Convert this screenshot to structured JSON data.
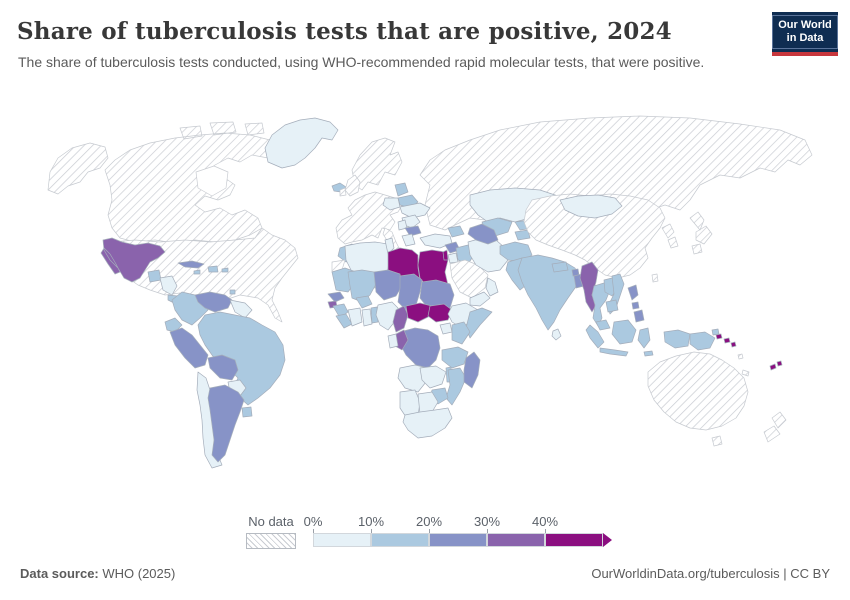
{
  "header": {
    "title": "Share of tuberculosis tests that are positive, 2024",
    "subtitle": "The share of tuberculosis tests conducted, using WHO-recommended rapid molecular tests, that were positive.",
    "logo": {
      "line1": "Our World",
      "line2": "in Data",
      "bg_color": "#0f2d52",
      "accent_color": "#c8373d"
    }
  },
  "legend": {
    "no_data_label": "No data",
    "tick_labels": [
      "0%",
      "10%",
      "20%",
      "30%",
      "40%"
    ]
  },
  "footer": {
    "datasource_label": "Data source:",
    "datasource_value": " WHO (2025)",
    "link_text": "OurWorldinData.org/tuberculosis | CC BY"
  },
  "chart_data": {
    "type": "choropleth",
    "title": "Share of tuberculosis tests that are positive, 2024",
    "unit": "%",
    "legend_position": "bottom",
    "bins": [
      {
        "key": "0-10",
        "range": [
          0,
          10
        ],
        "color": "#e6f1f7"
      },
      {
        "key": "10-20",
        "range": [
          10,
          20
        ],
        "color": "#abc9e0"
      },
      {
        "key": "20-30",
        "range": [
          20,
          30
        ],
        "color": "#8793c7"
      },
      {
        "key": "30-40",
        "range": [
          30,
          40
        ],
        "color": "#8a63ac"
      },
      {
        "key": "40+",
        "range": [
          40,
          60
        ],
        "color": "#8b0f80"
      }
    ],
    "no_data": {
      "key": "no-data",
      "label": "No data",
      "pattern": "diagonal-hatch",
      "line_color": "#c9ccd2"
    },
    "countries": {
      "canada": "no-data",
      "usa": "no-data",
      "greenland": "0-10",
      "iceland": "10-20",
      "mexico": "30-40",
      "cuba": "20-30",
      "hispaniola": "10-20",
      "jamaica": "10-20",
      "puerto-rico": "10-20",
      "guatemala": "10-20",
      "honduras-nicaragua": "0-10",
      "costa-rica-panama": "10-20",
      "trinidad": "10-20",
      "colombia": "10-20",
      "venezuela": "20-30",
      "guyanas": "0-10",
      "ecuador": "10-20",
      "peru": "20-30",
      "brazil": "10-20",
      "bolivia": "20-30",
      "paraguay": "0-10",
      "chile": "0-10",
      "argentina": "20-30",
      "uruguay": "10-20",
      "uk": "no-data",
      "ireland": "no-data",
      "western-europe": "no-data",
      "italy": "no-data",
      "scandinavia": "no-data",
      "baltics": "10-20",
      "belarus": "10-20",
      "poland": "0-10",
      "ukraine": "0-10",
      "romania": "0-10",
      "serbia": "0-10",
      "bulgaria": "20-30",
      "greece": "0-10",
      "turkey": "0-10",
      "caucasus": "10-20",
      "russia": "no-data",
      "morocco": "10-20",
      "western-sahara": "no-data",
      "algeria": "0-10",
      "tunisia": "0-10",
      "libya": "40+",
      "egypt": "40+",
      "mauritania": "10-20",
      "mali": "10-20",
      "niger": "20-30",
      "chad": "20-30",
      "sudan": "20-30",
      "senegal": "20-30",
      "guinea-bissau": "30-40",
      "guinea": "10-20",
      "sierra-leone-liberia": "10-20",
      "ivory-coast": "0-10",
      "ghana": "0-10",
      "togo-benin": "10-20",
      "burkina-faso": "10-20",
      "nigeria": "0-10",
      "cameroon": "30-40",
      "car": "40+",
      "south-sudan": "40+",
      "ethiopia": "0-10",
      "somalia": "10-20",
      "uganda": "0-10",
      "kenya": "10-20",
      "drc": "20-30",
      "congo": "30-40",
      "gabon": "0-10",
      "tanzania": "10-20",
      "angola": "0-10",
      "zambia": "0-10",
      "malawi": "10-20",
      "mozambique": "10-20",
      "zimbabwe": "10-20",
      "namibia": "0-10",
      "botswana": "0-10",
      "south-africa": "0-10",
      "madagascar": "20-30",
      "syria": "20-30",
      "levant": "40+",
      "jordan": "0-10",
      "iraq": "10-20",
      "saudi-arabia": "no-data",
      "yemen": "0-10",
      "oman": "0-10",
      "iran": "0-10",
      "kazakhstan": "0-10",
      "uzbekistan": "10-20",
      "turkmenistan": "20-30",
      "kyrgyzstan": "10-20",
      "tajikistan": "10-20",
      "afghanistan": "10-20",
      "pakistan": "10-20",
      "india": "10-20",
      "nepal": "10-20",
      "bhutan": "20-30",
      "bangladesh": "20-30",
      "sri-lanka": "0-10",
      "myanmar": "30-40",
      "thailand": "10-20",
      "laos": "10-20",
      "vietnam": "10-20",
      "cambodia": "10-20",
      "malaysia": "10-20",
      "indonesia": "10-20",
      "png": "10-20",
      "philippines": "20-30",
      "taiwan": "no-data",
      "china": "no-data",
      "mongolia": "0-10",
      "north-korea": "no-data",
      "south-korea": "no-data",
      "japan": "no-data",
      "australia": "no-data",
      "new-zealand": "no-data",
      "solomon-islands": "40+",
      "vanuatu": "no-data",
      "fiji": "40+",
      "new-caledonia": "no-data",
      "timor": "10-20"
    }
  }
}
